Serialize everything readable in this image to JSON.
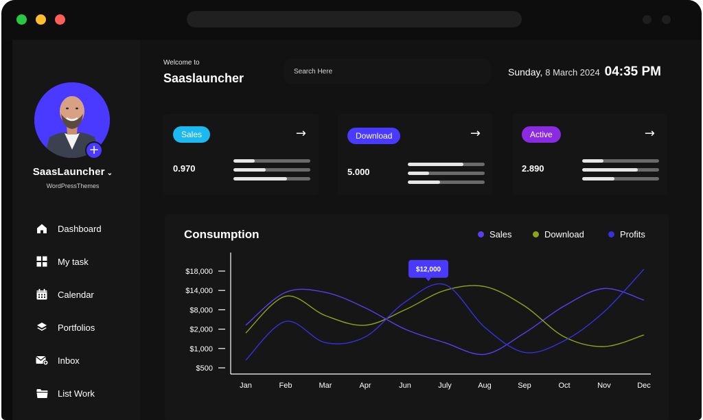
{
  "window": {
    "controls": {
      "close_color": "#28c840",
      "minimize_color": "#febc2e",
      "maximize_color": "#ff5f57"
    }
  },
  "sidebar": {
    "username": "SaasLauncher",
    "subtitle": "WordPressThemes",
    "items": [
      {
        "label": "Dashboard",
        "icon": "home-icon"
      },
      {
        "label": "My task",
        "icon": "grid-icon"
      },
      {
        "label": "Calendar",
        "icon": "calendar-icon"
      },
      {
        "label": "Portfolios",
        "icon": "layers-icon"
      },
      {
        "label": "Inbox",
        "icon": "mail-icon"
      },
      {
        "label": "List Work",
        "icon": "folder-icon"
      }
    ]
  },
  "header": {
    "welcome": "Welcome to",
    "brand": "Saaslauncher",
    "search_placeholder": "Search Here",
    "day": "Sunday,",
    "date": "8 March 2024",
    "time": "04:35 PM"
  },
  "cards": [
    {
      "label": "Sales",
      "value": "0.970",
      "color": "#1cb8f0",
      "bars": [
        0.28,
        0.42,
        0.7
      ]
    },
    {
      "label": "Download",
      "value": "5.000",
      "color": "#4a3aff",
      "bars": [
        0.72,
        0.28,
        0.42
      ]
    },
    {
      "label": "Active",
      "value": "2.890",
      "color": "#8a2be2",
      "bars": [
        0.28,
        0.72,
        0.42
      ]
    }
  ],
  "chart_data": {
    "type": "line",
    "title": "Consumption",
    "categories": [
      "Jan",
      "Feb",
      "Mar",
      "Apr",
      "Jun",
      "July",
      "Aug",
      "Sep",
      "Oct",
      "Nov",
      "Dec"
    ],
    "y_tick_labels": [
      "$500",
      "$1,000",
      "$2,000",
      "$8,000",
      "$14,000",
      "$18,000"
    ],
    "series": [
      {
        "name": "Sales",
        "color": "#5a3ff0",
        "values": [
          2.2,
          3.9,
          3.9,
          3.1,
          2.0,
          1.3,
          0.7,
          1.8,
          3.2,
          4.1,
          3.5
        ]
      },
      {
        "name": "Download",
        "color": "#8ea51a",
        "values": [
          1.8,
          3.7,
          2.7,
          2.2,
          3.0,
          4.0,
          4.2,
          3.2,
          1.6,
          1.1,
          1.7
        ]
      },
      {
        "name": "Profits",
        "color": "#3a2fe0",
        "values": [
          0.4,
          2.4,
          1.3,
          1.6,
          3.4,
          4.3,
          2.1,
          0.8,
          1.4,
          2.9,
          5.1
        ]
      }
    ],
    "tooltip": {
      "label": "$12,000",
      "category": "July",
      "series": "Profits"
    },
    "grid": false,
    "legend_position": "top-right"
  }
}
